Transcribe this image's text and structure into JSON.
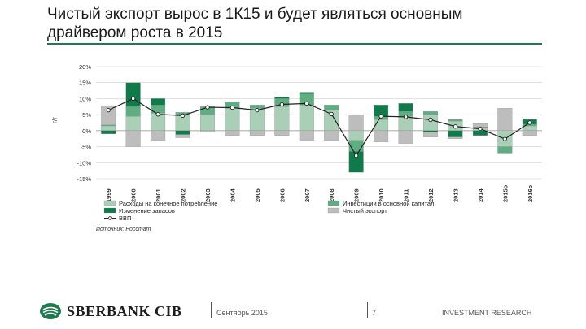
{
  "header": {
    "title_line1": "Чистый экспорт вырос в 1К15 и будет являться основным",
    "title_line2": "драйвером роста в 2015"
  },
  "colors": {
    "accent": "#1e7a4f",
    "consumption": "#a9cfb6",
    "investment": "#5fae82",
    "inventory": "#0f7a4a",
    "net_export": "#bdbdbd",
    "gdp_line": "#222222"
  },
  "chart_data": {
    "type": "bar",
    "stacked": true,
    "ylabel": "г/г",
    "ylim": [
      -15,
      20
    ],
    "yticks": [
      -15,
      -10,
      -5,
      0,
      5,
      10,
      15,
      20
    ],
    "ytick_labels": [
      "-15%",
      "-10%",
      "-5%",
      "0%",
      "5%",
      "10%",
      "15%",
      "20%"
    ],
    "categories": [
      "1999",
      "2000",
      "2001",
      "2002",
      "2003",
      "2004",
      "2005",
      "2006",
      "2007",
      "2008",
      "2009",
      "2010",
      "2011",
      "2012",
      "2013",
      "2014",
      "2015о",
      "2016о"
    ],
    "series": [
      {
        "name": "Расходы на конечное потребление",
        "values": [
          1.5,
          4.5,
          5.5,
          5.0,
          5.0,
          7.0,
          7.0,
          7.5,
          8.0,
          6.5,
          -3.0,
          3.5,
          4.5,
          5.0,
          3.0,
          1.0,
          -5.0,
          1.5
        ]
      },
      {
        "name": "Инвестиции в основной капитал",
        "values": [
          0.3,
          3.0,
          2.5,
          0.7,
          2.5,
          2.0,
          1.0,
          2.5,
          3.5,
          1.5,
          -3.5,
          1.0,
          1.5,
          1.0,
          0.5,
          0.2,
          -2.0,
          0.5
        ]
      },
      {
        "name": "Изменение запасов",
        "values": [
          -1.0,
          7.5,
          2.0,
          -1.2,
          0.0,
          0.0,
          0.0,
          0.5,
          0.5,
          0.0,
          -6.5,
          3.5,
          2.5,
          -0.5,
          -2.0,
          -1.5,
          0.0,
          1.5
        ]
      },
      {
        "name": "Чистый экспорт",
        "values": [
          6.0,
          -5.0,
          -3.0,
          -1.0,
          -0.5,
          -1.5,
          -1.5,
          -1.5,
          -3.0,
          -3.0,
          5.0,
          -3.5,
          -4.0,
          -1.5,
          -0.5,
          1.0,
          7.0,
          -1.5
        ]
      },
      {
        "name": "ВВП",
        "type": "line",
        "values": [
          6.4,
          10.0,
          5.1,
          4.7,
          7.3,
          7.2,
          6.4,
          8.2,
          8.5,
          5.2,
          -7.8,
          4.5,
          4.3,
          3.4,
          1.3,
          0.6,
          -2.6,
          2.5
        ]
      }
    ],
    "legend": {
      "position": "bottom",
      "items": [
        {
          "label": "Расходы на конечное потребление",
          "color": "#a9cfb6",
          "marker": "box"
        },
        {
          "label": "Инвестиции в основной капитал",
          "color": "#5fae82",
          "marker": "box"
        },
        {
          "label": "Изменение запасов",
          "color": "#0f7a4a",
          "marker": "box"
        },
        {
          "label": "Чистый экспорт",
          "color": "#bdbdbd",
          "marker": "box"
        },
        {
          "label": "ВВП",
          "color": "#222222",
          "marker": "line"
        }
      ]
    },
    "grid": true
  },
  "source": "Источник: Росстат",
  "footer": {
    "logo_text": "SBERBANK CIB",
    "date": "Сентябрь 2015",
    "page": "7",
    "division": "INVESTMENT RESEARCH"
  }
}
